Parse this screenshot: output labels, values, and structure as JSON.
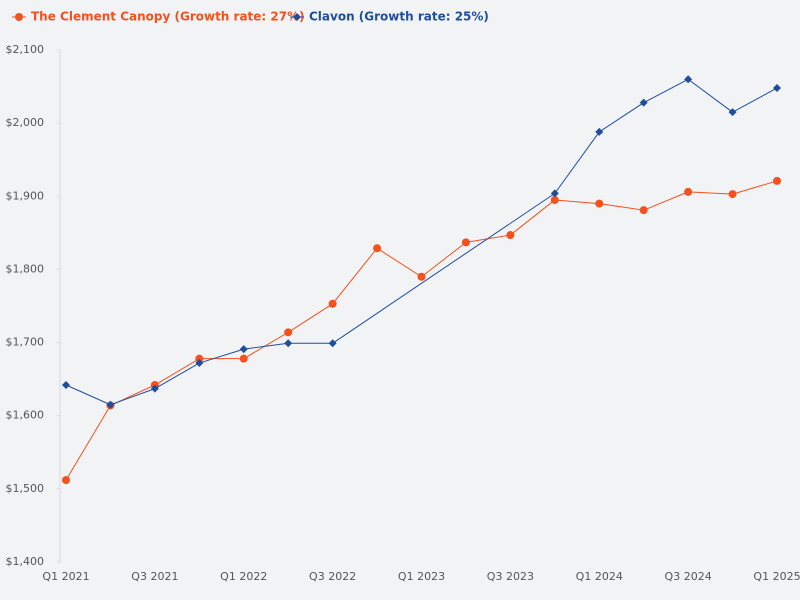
{
  "chart_data": {
    "type": "line",
    "categories": [
      "Q1 2021",
      null,
      "Q3 2021",
      null,
      "Q1 2022",
      null,
      "Q3 2022",
      null,
      "Q1 2023",
      null,
      "Q3 2023",
      null,
      "Q1 2024",
      null,
      "Q3 2024",
      null,
      "Q1 2025"
    ],
    "series": [
      {
        "name": "The Clement Canopy (Growth rate: 27%)",
        "color": "#f4511e",
        "marker": "circle",
        "values": [
          1512,
          1614,
          1642,
          1678,
          1678,
          1714,
          1753,
          1829,
          1790,
          1837,
          1847,
          1895,
          1890,
          1881,
          1906,
          1903,
          1921
        ]
      },
      {
        "name": "Clavon (Growth rate: 25%)",
        "color": "#1f4e9c",
        "marker": "diamond",
        "values": [
          1642,
          1615,
          1637,
          1672,
          1691,
          1699,
          1699,
          null,
          null,
          null,
          null,
          1904,
          1988,
          2028,
          2060,
          2015,
          2048
        ]
      }
    ],
    "ylim": [
      1400,
      2100
    ],
    "yticks": [
      {
        "value": 1400,
        "label": "$1,400"
      },
      {
        "value": 1500,
        "label": "$1,500"
      },
      {
        "value": 1600,
        "label": "$1,600"
      },
      {
        "value": 1700,
        "label": "$1,700"
      },
      {
        "value": 1800,
        "label": "$1,800"
      },
      {
        "value": 1900,
        "label": "$1,900"
      },
      {
        "value": 2000,
        "label": "$2,000"
      },
      {
        "value": 2100,
        "label": "$2,100"
      }
    ],
    "legend": "top-left"
  }
}
